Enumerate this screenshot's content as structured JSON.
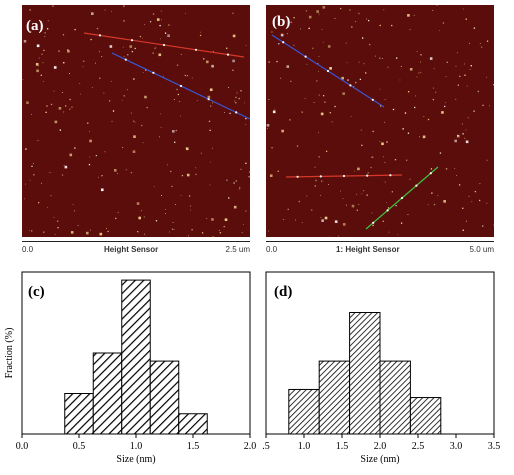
{
  "panels": {
    "a": {
      "label": "(a)",
      "scale_start": "0.0",
      "scale_title": "Height Sensor",
      "scale_end": "2.5 um"
    },
    "b": {
      "label": "(b)",
      "scale_start": "0.0",
      "scale_title": "1: Height Sensor",
      "scale_end": "5.0 um"
    }
  },
  "colors": {
    "afm_background": "#5a0d0a",
    "particle": "#f2d890",
    "line_red": "#d8382a",
    "line_blue": "#3a57d8",
    "line_green": "#3ec33e"
  },
  "chart_data": [
    {
      "type": "bar",
      "label": "(c)",
      "xlabel": "Size (nm)",
      "ylabel": "Fraction (%)",
      "xlim": [
        0.0,
        2.0
      ],
      "ylim": [
        0,
        40
      ],
      "xticks": [
        0.0,
        0.5,
        1.0,
        1.5,
        2.0
      ],
      "xtick_labels": [
        "0.0",
        "0.5",
        "1.0",
        "1.5",
        "2.0"
      ],
      "bin_width": 0.25,
      "x": [
        0.5,
        0.75,
        1.0,
        1.25,
        1.5,
        1.75
      ],
      "values": [
        10,
        20,
        38,
        18,
        5,
        0
      ],
      "hatch": "dense-diagonal"
    },
    {
      "type": "bar",
      "label": "(d)",
      "xlabel": "Size (nm)",
      "ylabel": "",
      "xlim": [
        0.5,
        3.5
      ],
      "ylim": [
        0,
        40
      ],
      "xticks": [
        0.5,
        1.0,
        1.5,
        2.0,
        2.5,
        3.0,
        3.5
      ],
      "xtick_labels": [
        ".5",
        "1.0",
        "1.5",
        "2.0",
        "2.5",
        "3.0",
        "3.5"
      ],
      "bin_width": 0.4,
      "x": [
        1.0,
        1.4,
        1.8,
        2.2,
        2.6,
        3.0
      ],
      "values": [
        11,
        18,
        30,
        18,
        9,
        0
      ],
      "hatch": "fine-diagonal"
    }
  ]
}
